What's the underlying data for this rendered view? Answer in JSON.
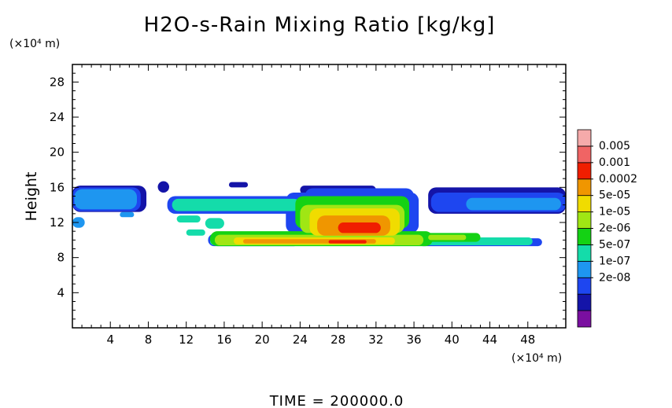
{
  "chart_data": {
    "type": "heatmap",
    "title": "H2O-s-Rain Mixing Ratio [kg/kg]",
    "ylabel": "Height",
    "y_unit": "(×10⁴ m)",
    "x_unit": "(×10⁴ m)",
    "xlim": [
      0,
      52
    ],
    "ylim": [
      0,
      30
    ],
    "x_ticks": [
      4,
      8,
      12,
      16,
      20,
      24,
      28,
      32,
      36,
      40,
      44,
      48
    ],
    "y_ticks": [
      4,
      8,
      12,
      16,
      20,
      24,
      28
    ],
    "footer": "TIME = 200000.0",
    "legend": {
      "labels": [
        "0.005",
        "0.001",
        "0.0002",
        "5e-05",
        "1e-05",
        "2e-06",
        "5e-07",
        "1e-07",
        "2e-08"
      ],
      "colors_bottom_to_top": [
        "#7a0fa0",
        "#1414a8",
        "#1e46f0",
        "#1e96f0",
        "#14dcaa",
        "#14d214",
        "#a0e614",
        "#f0dc00",
        "#f09600",
        "#f01e00",
        "#f06464",
        "#f5aaaa"
      ]
    },
    "regions": [
      {
        "level": 1,
        "x": [
          0,
          7.8
        ],
        "y": [
          13.2,
          16.2
        ]
      },
      {
        "level": 1,
        "x": [
          9,
          10.2
        ],
        "y": [
          15.4,
          16.7
        ]
      },
      {
        "level": 1,
        "x": [
          16.5,
          18.5
        ],
        "y": [
          16,
          16.6
        ]
      },
      {
        "level": 1,
        "x": [
          24,
          32
        ],
        "y": [
          15.2,
          16.2
        ]
      },
      {
        "level": 1,
        "x": [
          37.5,
          52
        ],
        "y": [
          13,
          16
        ]
      },
      {
        "level": 2,
        "x": [
          0,
          7.2
        ],
        "y": [
          13.3,
          16
        ]
      },
      {
        "level": 2,
        "x": [
          37.8,
          52
        ],
        "y": [
          13.2,
          15.4
        ]
      },
      {
        "level": 3,
        "x": [
          0.2,
          6.8
        ],
        "y": [
          13.5,
          15.8
        ]
      },
      {
        "level": 3,
        "x": [
          41.5,
          51.5
        ],
        "y": [
          13.4,
          14.8
        ]
      },
      {
        "level": 3,
        "x": [
          0,
          1.3
        ],
        "y": [
          11.4,
          12.6
        ]
      },
      {
        "level": 3,
        "x": [
          5,
          6.5
        ],
        "y": [
          12.6,
          13.2
        ]
      },
      {
        "level": 2,
        "x": [
          10,
          28
        ],
        "y": [
          13,
          15
        ]
      },
      {
        "level": 2,
        "x": [
          22.5,
          36.5
        ],
        "y": [
          10.8,
          15.4
        ]
      },
      {
        "level": 2,
        "x": [
          24.5,
          36
        ],
        "y": [
          13.2,
          15.9
        ]
      },
      {
        "level": 2,
        "x": [
          14.3,
          24
        ],
        "y": [
          9.3,
          10.7
        ]
      },
      {
        "level": 2,
        "x": [
          36.5,
          49.5
        ],
        "y": [
          9.3,
          10.2
        ]
      },
      {
        "level": 4,
        "x": [
          10.5,
          24
        ],
        "y": [
          13.3,
          14.7
        ]
      },
      {
        "level": 4,
        "x": [
          11,
          13.5
        ],
        "y": [
          12,
          12.8
        ]
      },
      {
        "level": 4,
        "x": [
          14,
          16
        ],
        "y": [
          11.3,
          12.5
        ]
      },
      {
        "level": 4,
        "x": [
          12,
          14
        ],
        "y": [
          10.5,
          11.2
        ]
      },
      {
        "level": 4,
        "x": [
          14.5,
          48.5
        ],
        "y": [
          9.4,
          10.3
        ]
      },
      {
        "level": 5,
        "x": [
          23.5,
          35.5
        ],
        "y": [
          11.3,
          15
        ]
      },
      {
        "level": 5,
        "x": [
          14.5,
          38
        ],
        "y": [
          9.3,
          11
        ]
      },
      {
        "level": 5,
        "x": [
          36,
          43
        ],
        "y": [
          9.8,
          10.8
        ]
      },
      {
        "level": 6,
        "x": [
          24,
          35
        ],
        "y": [
          10.8,
          14
        ]
      },
      {
        "level": 6,
        "x": [
          15,
          37
        ],
        "y": [
          9.4,
          10.6
        ]
      },
      {
        "level": 6,
        "x": [
          37.5,
          41.5
        ],
        "y": [
          10,
          10.6
        ]
      },
      {
        "level": 7,
        "x": [
          25,
          34.5
        ],
        "y": [
          10.5,
          13.6
        ]
      },
      {
        "level": 7,
        "x": [
          17,
          34
        ],
        "y": [
          9.5,
          10.3
        ]
      },
      {
        "level": 8,
        "x": [
          25.8,
          33.5
        ],
        "y": [
          10.5,
          12.8
        ]
      },
      {
        "level": 8,
        "x": [
          18,
          32
        ],
        "y": [
          9.6,
          10.1
        ]
      },
      {
        "level": 9,
        "x": [
          28,
          32.5
        ],
        "y": [
          10.8,
          12
        ]
      },
      {
        "level": 9,
        "x": [
          27,
          31
        ],
        "y": [
          9.6,
          10
        ]
      }
    ]
  }
}
